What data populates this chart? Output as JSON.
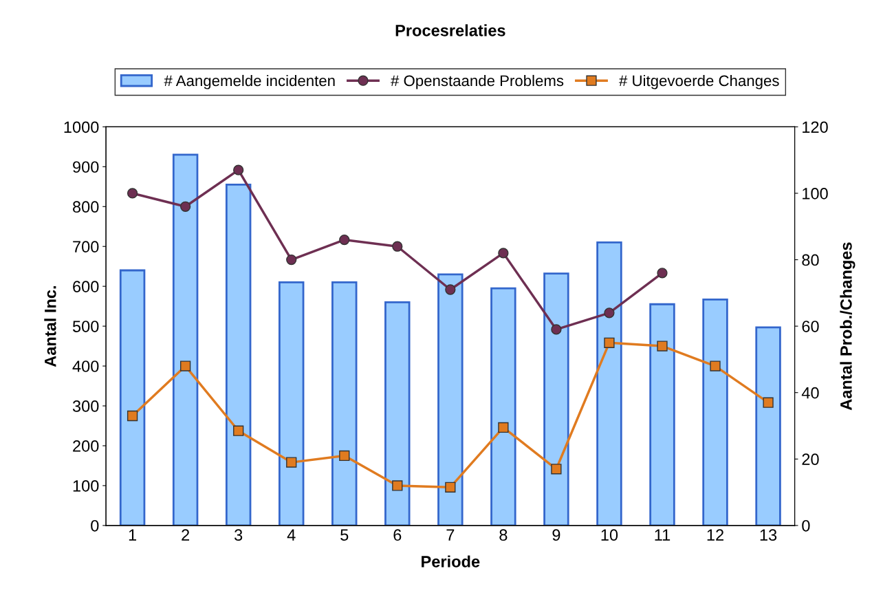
{
  "chart_data": {
    "type": "bar",
    "title": "Procesrelaties",
    "xlabel": "Periode",
    "ylabel": "Aantal Inc.",
    "y2label": "Aantal Prob./Changes",
    "categories": [
      "1",
      "2",
      "3",
      "4",
      "5",
      "6",
      "7",
      "8",
      "9",
      "10",
      "11",
      "12",
      "13"
    ],
    "series": [
      {
        "name": "# Aangemelde incidenten",
        "color": "#99ccff",
        "values": [
          640,
          930,
          855,
          610,
          610,
          560,
          630,
          595,
          632,
          710,
          555,
          567,
          497
        ]
      },
      {
        "name": "# Openstaande Problems",
        "type": "line",
        "axis": "y2",
        "marker": "circle",
        "color": "#6e2f52",
        "values": [
          100,
          96,
          107,
          80,
          86,
          84,
          71,
          82,
          59,
          64,
          76,
          null,
          null
        ]
      },
      {
        "name": "# Uitgevoerde Changes",
        "type": "line",
        "axis": "y2",
        "marker": "square",
        "color": "#e07b20",
        "values": [
          33,
          48,
          28.5,
          19,
          21,
          12,
          11.5,
          29.5,
          17,
          55,
          54,
          48,
          37
        ]
      }
    ],
    "ylim": [
      0,
      1000
    ],
    "yticks": [
      0,
      100,
      200,
      300,
      400,
      500,
      600,
      700,
      800,
      900,
      1000
    ],
    "y2lim": [
      0,
      120
    ],
    "y2ticks": [
      0,
      20,
      40,
      60,
      80,
      100,
      120
    ],
    "grid": false,
    "legend": "top"
  }
}
